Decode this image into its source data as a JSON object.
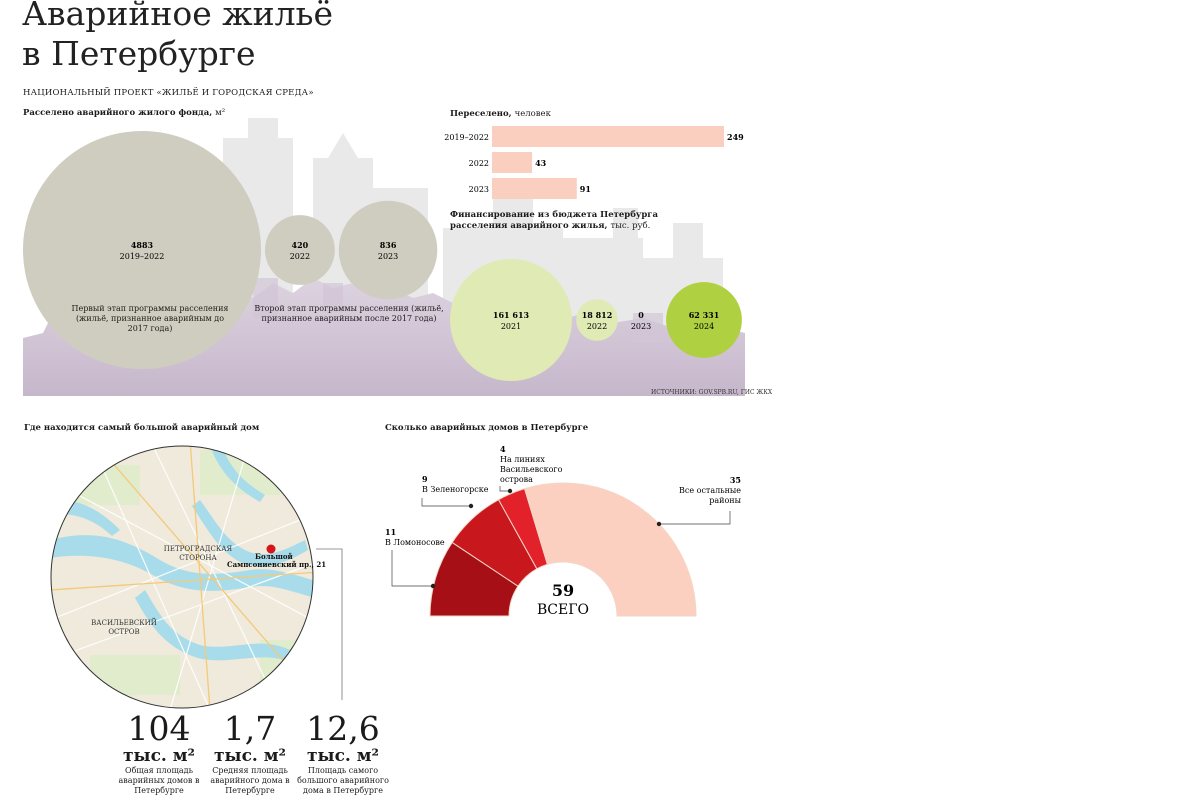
{
  "title_line1": "Аварийное жильё",
  "title_line2": "в Петербурге",
  "subtitle": "НАЦИОНАЛЬНЫЙ ПРОЕКТ «ЖИЛЬЁ И ГОРОДСКАЯ СРЕДА»",
  "source": "ИСТОЧНИКИ: GOV.SPB.RU, ГИС ЖКХ",
  "colors": {
    "area": "#cfcdbf",
    "resettled": "#fbcfbf",
    "fin_light": "#dfeab5",
    "fin_dark": "#aed041",
    "dark_red": "#a50f15",
    "mid_red": "#c9171e",
    "bright_red": "#e2212a",
    "pink": "#fcd0c0"
  },
  "chart_data": [
    {
      "type": "bubble",
      "title": "Расселено аварийного жилого фонда,",
      "unit": "м²",
      "categories": [
        "2019–2022",
        "2022",
        "2023"
      ],
      "values": [
        4883,
        420,
        836
      ],
      "value_labels": [
        "4883",
        "420",
        "836"
      ],
      "annotations": [
        "Первый этап программы расселения (жильё, признанное аварийным до 2017 года)",
        "Второй этап программы расселения (жильё, признанное аварийным после 2017 года)"
      ]
    },
    {
      "type": "bar",
      "orientation": "horizontal",
      "title": "Переселено,",
      "unit": "человек",
      "categories": [
        "2019–2022",
        "2022",
        "2023"
      ],
      "values": [
        249,
        43,
        91
      ]
    },
    {
      "type": "bubble",
      "title": "Финансирование из бюджета Петербурга расселения аварийного жилья,",
      "unit": "тыс. руб.",
      "categories": [
        "2021",
        "2022",
        "2023",
        "2024"
      ],
      "values": [
        161613,
        18812,
        0,
        62331
      ],
      "value_labels": [
        "161 613",
        "18 812",
        "0",
        "62 331"
      ]
    },
    {
      "type": "pie",
      "title": "Сколько аварийных домов в Петербурге",
      "total": 59,
      "total_label": "ВСЕГО",
      "slices": [
        {
          "label": "В Ломоносове",
          "value": 11
        },
        {
          "label": "В Зеленогорске",
          "value": 9
        },
        {
          "label": "На линиях Васильевского острова",
          "value": 4
        },
        {
          "label": "Все остальные районы",
          "value": 35
        }
      ]
    }
  ],
  "map": {
    "title": "Где находится самый большой аварийный дом",
    "label_petrogradskaya": "ПЕТРОГРАДСКАЯ СТОРОНА",
    "label_vasilievsky": "ВАСИЛЬЕВСКИЙ ОСТРОВ",
    "marker_line1": "Большой",
    "marker_line2": "Сампсониевский пр., 21"
  },
  "stats": [
    {
      "value": "104",
      "unit": "тыс. м²",
      "desc": "Общая площадь аварийных домов в Петербурге"
    },
    {
      "value": "1,7",
      "unit": "тыс. м²",
      "desc": "Средняя площадь аварийного дома в Петербурге"
    },
    {
      "value": "12,6",
      "unit": "тыс. м²",
      "desc": "Площадь самого большого аварийного дома в Петербурге"
    }
  ]
}
